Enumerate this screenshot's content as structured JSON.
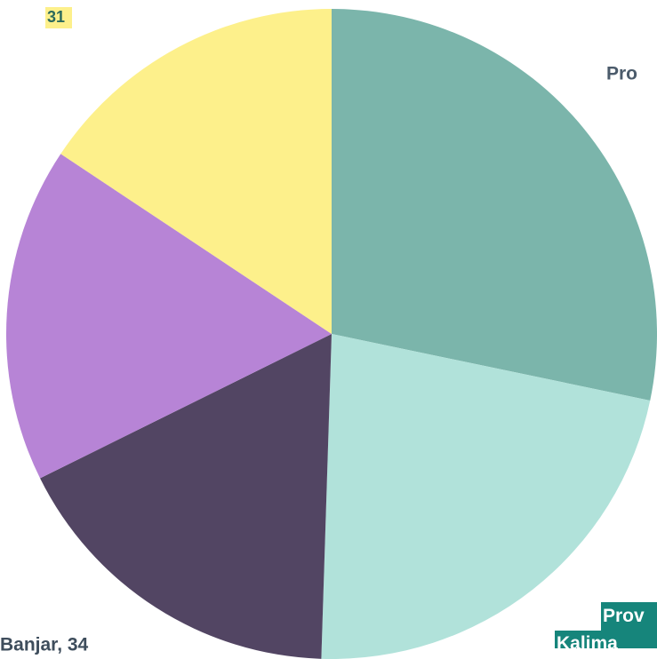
{
  "chart_data": {
    "type": "pie",
    "categories": [
      "Pro",
      "Prov Kalima",
      "Banjar",
      null,
      null
    ],
    "values": [
      56,
      44,
      34,
      33,
      31
    ],
    "value_labels": [
      null,
      null,
      "Banjar, 34",
      null,
      "31"
    ],
    "colors": [
      "#7bb5ab",
      "#b1e2da",
      "#524563",
      "#b784d6",
      "#fdf08b"
    ],
    "start_angle": 0,
    "direction": "clockwise"
  }
}
